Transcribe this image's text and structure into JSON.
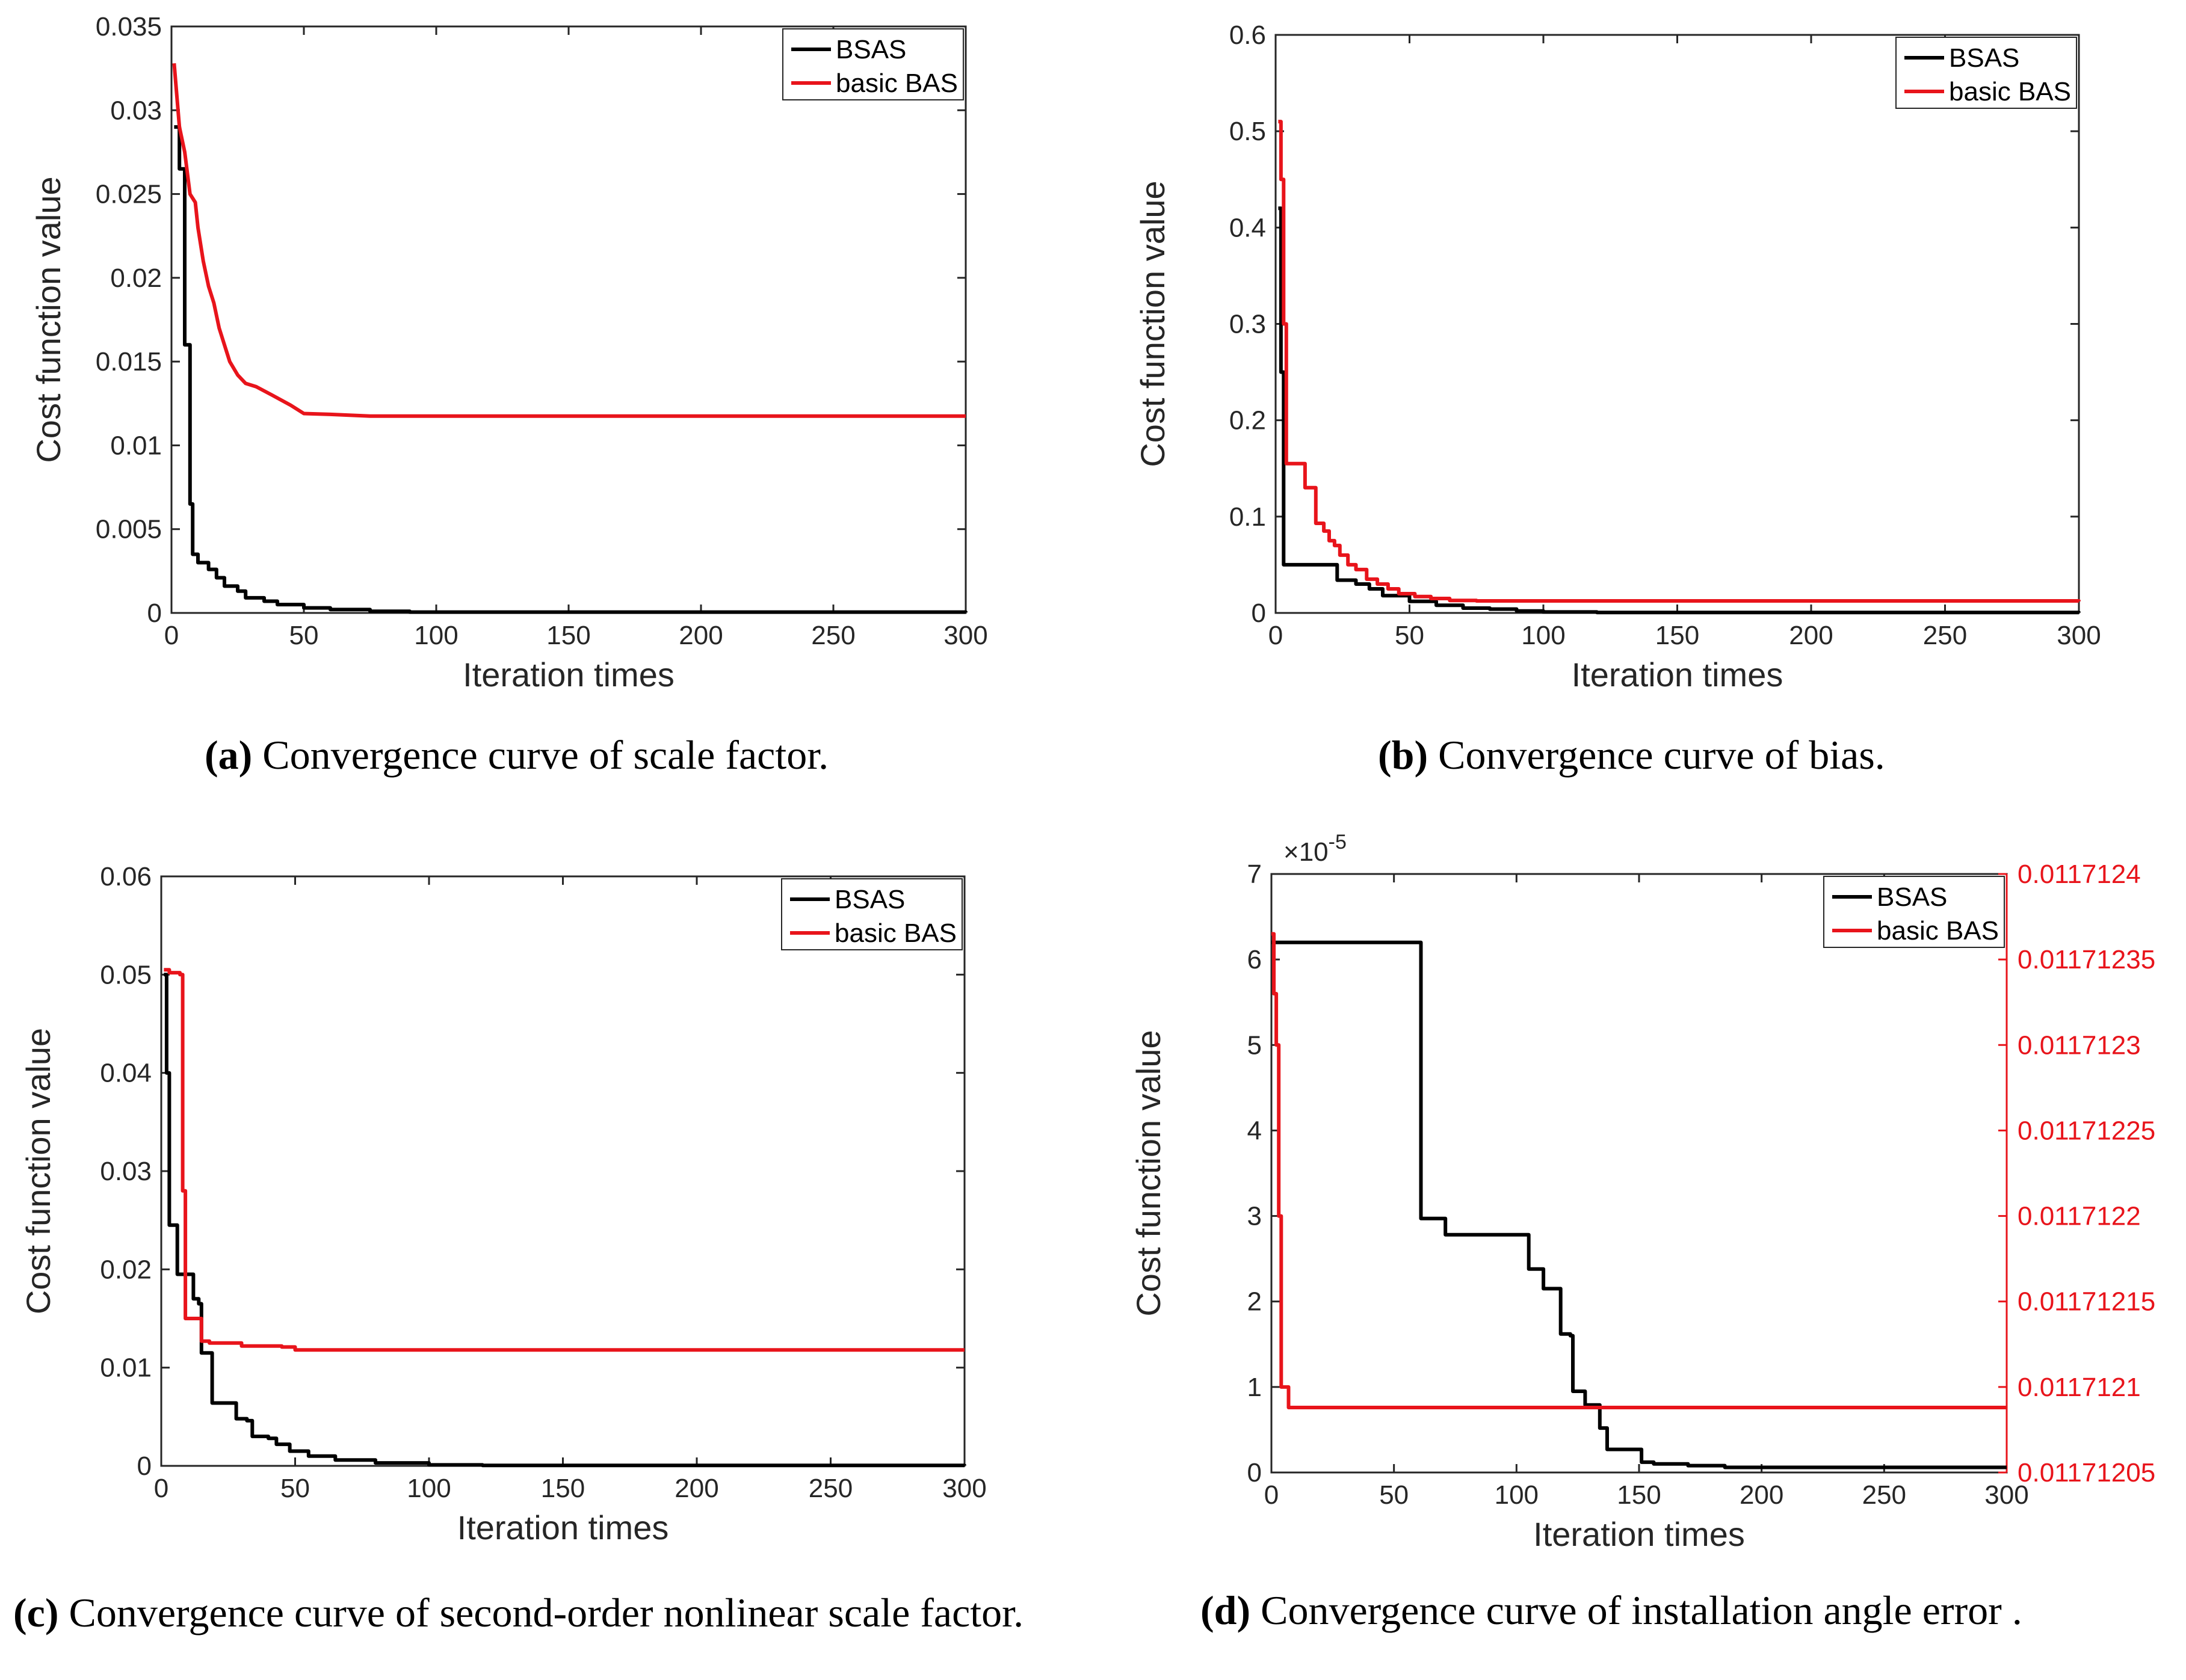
{
  "colors": {
    "bsas": "#000000",
    "bas": "#e8141b",
    "axis": "#262626"
  },
  "chart_data": [
    {
      "id": "a",
      "type": "line",
      "title": "",
      "xlabel": "Iteration times",
      "ylabel": "Cost function value",
      "xlim": [
        0,
        300
      ],
      "ylim": [
        0,
        0.035
      ],
      "xticks": [
        0,
        50,
        100,
        150,
        200,
        250,
        300
      ],
      "xtick_labels": [
        "0",
        "50",
        "100",
        "150",
        "200",
        "250",
        "300"
      ],
      "yticks": [
        0,
        0.005,
        0.01,
        0.015,
        0.02,
        0.025,
        0.03,
        0.035
      ],
      "ytick_labels": [
        "0",
        "0.005",
        "0.01",
        "0.015",
        "0.02",
        "0.025",
        "0.03",
        "0.035"
      ],
      "legend": [
        "BSAS",
        "basic BAS"
      ],
      "legend_position": "top-right",
      "caption_label": "(a)",
      "caption_text": " Convergence curve of scale factor.",
      "series": [
        {
          "name": "BSAS",
          "step": true,
          "points": [
            [
              1,
              0.029
            ],
            [
              3,
              0.0265
            ],
            [
              5,
              0.016
            ],
            [
              7,
              0.0065
            ],
            [
              8,
              0.0035
            ],
            [
              10,
              0.003
            ],
            [
              14,
              0.0026
            ],
            [
              17,
              0.0021
            ],
            [
              20,
              0.0016
            ],
            [
              25,
              0.0013
            ],
            [
              28,
              0.0009
            ],
            [
              35,
              0.0007
            ],
            [
              40,
              0.0005
            ],
            [
              50,
              0.0003
            ],
            [
              60,
              0.0002
            ],
            [
              75,
              0.0001
            ],
            [
              90,
              5e-05
            ],
            [
              300,
              3e-05
            ]
          ]
        },
        {
          "name": "basic BAS",
          "step": false,
          "points": [
            [
              1,
              0.0328
            ],
            [
              3,
              0.029
            ],
            [
              5,
              0.0275
            ],
            [
              7,
              0.025
            ],
            [
              9,
              0.0245
            ],
            [
              10,
              0.023
            ],
            [
              12,
              0.021
            ],
            [
              14,
              0.0195
            ],
            [
              16,
              0.0185
            ],
            [
              18,
              0.017
            ],
            [
              20,
              0.016
            ],
            [
              22,
              0.015
            ],
            [
              25,
              0.0142
            ],
            [
              28,
              0.0137
            ],
            [
              32,
              0.0135
            ],
            [
              38,
              0.013
            ],
            [
              45,
              0.0124
            ],
            [
              50,
              0.0119
            ],
            [
              60,
              0.01185
            ],
            [
              75,
              0.01175
            ],
            [
              300,
              0.01175
            ]
          ]
        }
      ]
    },
    {
      "id": "b",
      "type": "line",
      "title": "",
      "xlabel": "Iteration times",
      "ylabel": "Cost function value",
      "xlim": [
        0,
        300
      ],
      "ylim": [
        0,
        0.6
      ],
      "xticks": [
        0,
        50,
        100,
        150,
        200,
        250,
        300
      ],
      "xtick_labels": [
        "0",
        "50",
        "100",
        "150",
        "200",
        "250",
        "300"
      ],
      "yticks": [
        0,
        0.1,
        0.2,
        0.3,
        0.4,
        0.5,
        0.6
      ],
      "ytick_labels": [
        "0",
        "0.1",
        "0.2",
        "0.3",
        "0.4",
        "0.5",
        "0.6"
      ],
      "legend": [
        "BSAS",
        "basic BAS"
      ],
      "legend_position": "top-right",
      "caption_label": "(b)",
      "caption_text": " Convergence curve of bias.",
      "series": [
        {
          "name": "BSAS",
          "step": true,
          "points": [
            [
              1,
              0.42
            ],
            [
              2,
              0.25
            ],
            [
              3,
              0.05
            ],
            [
              20,
              0.05
            ],
            [
              23,
              0.034
            ],
            [
              30,
              0.03
            ],
            [
              35,
              0.025
            ],
            [
              40,
              0.018
            ],
            [
              50,
              0.012
            ],
            [
              60,
              0.008
            ],
            [
              70,
              0.005
            ],
            [
              80,
              0.004
            ],
            [
              90,
              0.002
            ],
            [
              100,
              0.001
            ],
            [
              120,
              0.0005
            ],
            [
              300,
              0.0003
            ]
          ]
        },
        {
          "name": "basic BAS",
          "step": true,
          "points": [
            [
              1,
              0.51
            ],
            [
              2,
              0.45
            ],
            [
              3,
              0.3
            ],
            [
              4,
              0.155
            ],
            [
              10,
              0.155
            ],
            [
              11,
              0.13
            ],
            [
              14,
              0.13
            ],
            [
              15,
              0.093
            ],
            [
              18,
              0.085
            ],
            [
              20,
              0.075
            ],
            [
              22,
              0.07
            ],
            [
              24,
              0.06
            ],
            [
              27,
              0.05
            ],
            [
              30,
              0.045
            ],
            [
              34,
              0.035
            ],
            [
              38,
              0.03
            ],
            [
              42,
              0.025
            ],
            [
              46,
              0.02
            ],
            [
              52,
              0.017
            ],
            [
              58,
              0.015
            ],
            [
              65,
              0.013
            ],
            [
              75,
              0.0125
            ],
            [
              300,
              0.012
            ]
          ]
        }
      ]
    },
    {
      "id": "c",
      "type": "line",
      "title": "",
      "xlabel": "Iteration times",
      "ylabel": "Cost function value",
      "xlim": [
        0,
        300
      ],
      "ylim": [
        0,
        0.06
      ],
      "xticks": [
        0,
        50,
        100,
        150,
        200,
        250,
        300
      ],
      "xtick_labels": [
        "0",
        "50",
        "100",
        "150",
        "200",
        "250",
        "300"
      ],
      "yticks": [
        0,
        0.01,
        0.02,
        0.03,
        0.04,
        0.05,
        0.06
      ],
      "ytick_labels": [
        "0",
        "0.01",
        "0.02",
        "0.03",
        "0.04",
        "0.05",
        "0.06"
      ],
      "legend": [
        "BSAS",
        "basic BAS"
      ],
      "legend_position": "top-right",
      "caption_label": "(c)",
      "caption_text": " Convergence curve of second-order nonlinear scale factor.",
      "series": [
        {
          "name": "BSAS",
          "step": true,
          "points": [
            [
              1,
              0.05
            ],
            [
              2,
              0.04
            ],
            [
              3,
              0.0245
            ],
            [
              6,
              0.0195
            ],
            [
              10,
              0.0195
            ],
            [
              12,
              0.017
            ],
            [
              14,
              0.0165
            ],
            [
              15,
              0.0115
            ],
            [
              18,
              0.0115
            ],
            [
              19,
              0.0064
            ],
            [
              26,
              0.0064
            ],
            [
              28,
              0.0048
            ],
            [
              32,
              0.0046
            ],
            [
              34,
              0.003
            ],
            [
              40,
              0.0028
            ],
            [
              43,
              0.0022
            ],
            [
              48,
              0.0015
            ],
            [
              55,
              0.001
            ],
            [
              65,
              0.0006
            ],
            [
              80,
              0.0003
            ],
            [
              100,
              0.0001
            ],
            [
              120,
              5e-05
            ],
            [
              300,
              3e-05
            ]
          ]
        },
        {
          "name": "basic BAS",
          "step": true,
          "points": [
            [
              1,
              0.0505
            ],
            [
              3,
              0.0502
            ],
            [
              7,
              0.05
            ],
            [
              8,
              0.028
            ],
            [
              9,
              0.015
            ],
            [
              14,
              0.015
            ],
            [
              15,
              0.0127
            ],
            [
              18,
              0.0125
            ],
            [
              28,
              0.0125
            ],
            [
              30,
              0.0122
            ],
            [
              45,
              0.0121
            ],
            [
              50,
              0.0118
            ],
            [
              300,
              0.0118
            ]
          ]
        }
      ]
    },
    {
      "id": "d",
      "type": "line",
      "title": "",
      "xlabel": "Iteration times",
      "ylabel": "Cost function value",
      "xlim": [
        0,
        300
      ],
      "ylim": [
        0,
        7
      ],
      "y_exponent_label": "×10",
      "y_exponent_power": "-5",
      "xticks": [
        0,
        50,
        100,
        150,
        200,
        250,
        300
      ],
      "xtick_labels": [
        "0",
        "50",
        "100",
        "150",
        "200",
        "250",
        "300"
      ],
      "yticks": [
        0,
        1,
        2,
        3,
        4,
        5,
        6,
        7
      ],
      "ytick_labels": [
        "0",
        "1",
        "2",
        "3",
        "4",
        "5",
        "6",
        "7"
      ],
      "y2lim": [
        0.01171205,
        0.0117124
      ],
      "y2ticks": [
        0.01171205,
        0.0117121,
        0.01171215,
        0.0117122,
        0.01171225,
        0.0117123,
        0.01171235,
        0.0117124
      ],
      "y2tick_labels": [
        "0.01171205",
        "0.0117121",
        "0.01171215",
        "0.0117122",
        "0.01171225",
        "0.0117123",
        "0.01171235",
        "0.0117124"
      ],
      "legend": [
        "BSAS",
        "basic BAS"
      ],
      "legend_position": "top-right",
      "caption_label": "(d)",
      "caption_text": " Convergence curve of installation angle error .",
      "series": [
        {
          "name": "BSAS",
          "axis": "left",
          "step": true,
          "points": [
            [
              0,
              6.2
            ],
            [
              60,
              6.2
            ],
            [
              61,
              2.97
            ],
            [
              70,
              2.97
            ],
            [
              71,
              2.78
            ],
            [
              104,
              2.78
            ],
            [
              105,
              2.38
            ],
            [
              110,
              2.38
            ],
            [
              111,
              2.15
            ],
            [
              117,
              2.15
            ],
            [
              118,
              1.62
            ],
            [
              122,
              1.6
            ],
            [
              123,
              0.95
            ],
            [
              127,
              0.95
            ],
            [
              128,
              0.79
            ],
            [
              133,
              0.79
            ],
            [
              134,
              0.52
            ],
            [
              136,
              0.52
            ],
            [
              137,
              0.27
            ],
            [
              150,
              0.27
            ],
            [
              151,
              0.12
            ],
            [
              155,
              0.12
            ],
            [
              156,
              0.1
            ],
            [
              170,
              0.08
            ],
            [
              185,
              0.06
            ],
            [
              300,
              0.06
            ]
          ]
        },
        {
          "name": "basic BAS",
          "axis": "right",
          "step": true,
          "points": [
            [
              0,
              0.011712365
            ],
            [
              1,
              0.01171233
            ],
            [
              2,
              0.0117123
            ],
            [
              3,
              0.0117122
            ],
            [
              4,
              0.0117121
            ],
            [
              6,
              0.0117121
            ],
            [
              7,
              0.011712088
            ],
            [
              300,
              0.011712088
            ]
          ]
        }
      ]
    }
  ]
}
